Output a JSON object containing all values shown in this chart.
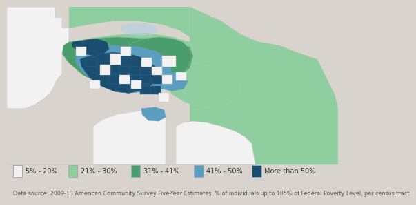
{
  "legend_items": [
    {
      "label": "5% - 20%",
      "color": "#f0f0f0",
      "edgecolor": "#aaaaaa"
    },
    {
      "label": "21% - 30%",
      "color": "#8fce9f",
      "edgecolor": "#aaaaaa"
    },
    {
      "label": "31% - 41%",
      "color": "#4a9e6e",
      "edgecolor": "#aaaaaa"
    },
    {
      "label": "41% - 50%",
      "color": "#5b9ec0",
      "edgecolor": "#aaaaaa"
    },
    {
      "label": "More than 50%",
      "color": "#1a4f72",
      "edgecolor": "#aaaaaa"
    }
  ],
  "datasource_text": "Data source: 2009-13 American Community Survey Five-Year Estimates, % of individuals up to 185% of Federal Poverty Level, per census tract",
  "bg_color": "#d8d4cd",
  "legend_bg": "#ffffff",
  "legend_fontsize": 7.0,
  "datasource_fontsize": 5.8,
  "colors": {
    "map_bg": "#d8d4cd",
    "white_area": "#f2f2f2",
    "light_green": "#8fce9f",
    "medium_green": "#4a9e6e",
    "teal_blue": "#5b9ec0",
    "dark_blue": "#1a4f72",
    "water": "#b8cfe0",
    "outer_bg": "#d8d4cd"
  }
}
